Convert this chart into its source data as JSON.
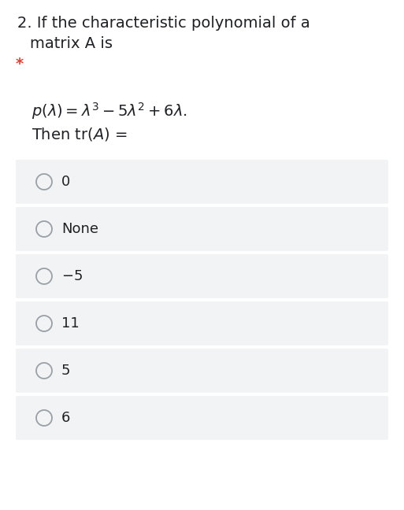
{
  "question_number": "2.",
  "question_text_line1": "If the characteristic polynomial of a",
  "question_text_line2": "matrix A is",
  "required_marker": "*",
  "options": [
    "0",
    "None",
    "-5",
    "11",
    "5",
    "6"
  ],
  "bg_color": "#ffffff",
  "option_bg_color": "#f1f3f4",
  "option_text_color": "#202124",
  "question_text_color": "#202124",
  "star_color": "#db4437",
  "circle_color": "#9aa0a6",
  "question_font_size": 14,
  "formula_font_size": 13,
  "option_font_size": 13,
  "fig_width": 5.13,
  "fig_height": 6.48,
  "dpi": 100
}
